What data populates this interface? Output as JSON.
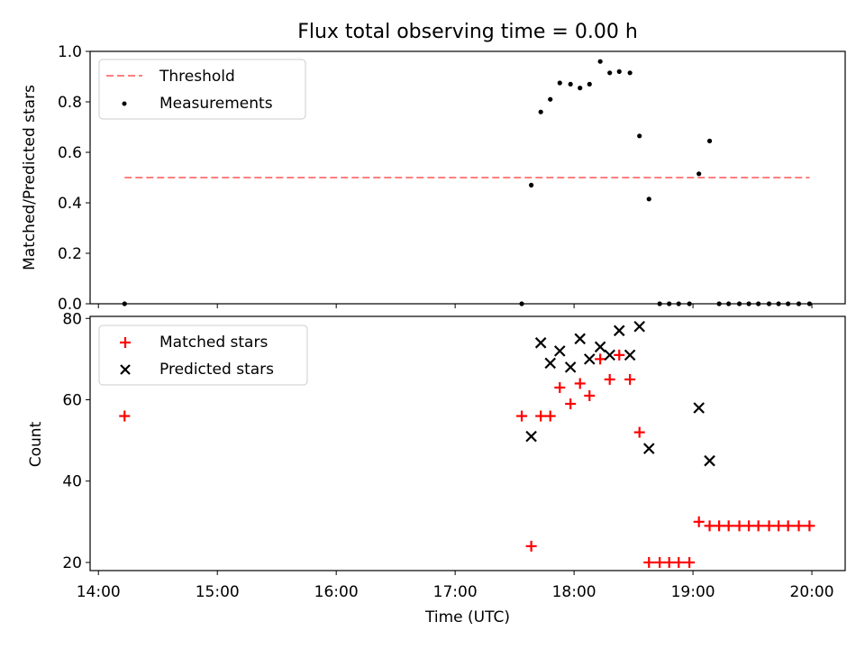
{
  "title": "Flux total observing time = 0.00 h",
  "chart_data": [
    {
      "type": "scatter",
      "panel": "top",
      "ylabel": "Matched/Predicted stars",
      "xlabel": "",
      "ylim": [
        0.0,
        1.0
      ],
      "yticks": [
        "0.0",
        "0.2",
        "0.4",
        "0.6",
        "0.8",
        "1.0"
      ],
      "legend_position": "upper left",
      "threshold": {
        "name": "Threshold",
        "value": 0.5,
        "x": [
          14.22,
          19.98
        ],
        "color": "#ff7f7f",
        "style": "dashed"
      },
      "series": [
        {
          "name": "Measurements",
          "marker": "dot",
          "color": "#000000",
          "x": [
            14.22,
            17.56,
            17.64,
            17.72,
            17.8,
            17.88,
            17.97,
            18.05,
            18.13,
            18.22,
            18.3,
            18.38,
            18.47,
            18.55,
            18.63,
            18.72,
            18.8,
            18.88,
            18.97,
            19.05,
            19.14,
            19.22,
            19.3,
            19.39,
            19.47,
            19.55,
            19.64,
            19.72,
            19.8,
            19.89,
            19.98
          ],
          "y": [
            0.0,
            0.0,
            0.47,
            0.76,
            0.81,
            0.875,
            0.87,
            0.855,
            0.87,
            0.96,
            0.915,
            0.92,
            0.915,
            0.665,
            0.415,
            0.0,
            0.0,
            0.0,
            0.0,
            0.515,
            0.645,
            0.0,
            0.0,
            0.0,
            0.0,
            0.0,
            0.0,
            0.0,
            0.0,
            0.0,
            0.0
          ]
        }
      ]
    },
    {
      "type": "scatter",
      "panel": "bottom",
      "ylabel": "Count",
      "xlabel": "Time (UTC)",
      "ylim": [
        18.0,
        80.5
      ],
      "yticks": [
        "20",
        "40",
        "60",
        "80"
      ],
      "xlim": [
        13.93,
        20.28
      ],
      "xticks": [
        "14:00",
        "15:00",
        "16:00",
        "17:00",
        "18:00",
        "19:00",
        "20:00"
      ],
      "legend_position": "upper left",
      "series": [
        {
          "name": "Matched stars",
          "marker": "plus",
          "color": "#ff0000",
          "x": [
            14.22,
            17.56,
            17.64,
            17.72,
            17.8,
            17.88,
            17.97,
            18.05,
            18.13,
            18.22,
            18.3,
            18.38,
            18.47,
            18.55,
            18.63,
            18.72,
            18.8,
            18.88,
            18.97,
            19.05,
            19.14,
            19.22,
            19.3,
            19.39,
            19.47,
            19.55,
            19.64,
            19.72,
            19.8,
            19.89,
            19.98
          ],
          "y": [
            56,
            56,
            24,
            56,
            56,
            63,
            59,
            64,
            61,
            70,
            65,
            71,
            65,
            52,
            20,
            20,
            20,
            20,
            20,
            30,
            29,
            29,
            29,
            29,
            29,
            29,
            29,
            29,
            29,
            29,
            29
          ]
        },
        {
          "name": "Predicted stars",
          "marker": "x",
          "color": "#000000",
          "x": [
            17.64,
            17.72,
            17.8,
            17.88,
            17.97,
            18.05,
            18.13,
            18.22,
            18.3,
            18.38,
            18.47,
            18.55,
            18.63,
            19.05,
            19.14
          ],
          "y": [
            51,
            74,
            69,
            72,
            68,
            75,
            70,
            73,
            71,
            77,
            71,
            78,
            48,
            58,
            45
          ]
        }
      ]
    }
  ]
}
